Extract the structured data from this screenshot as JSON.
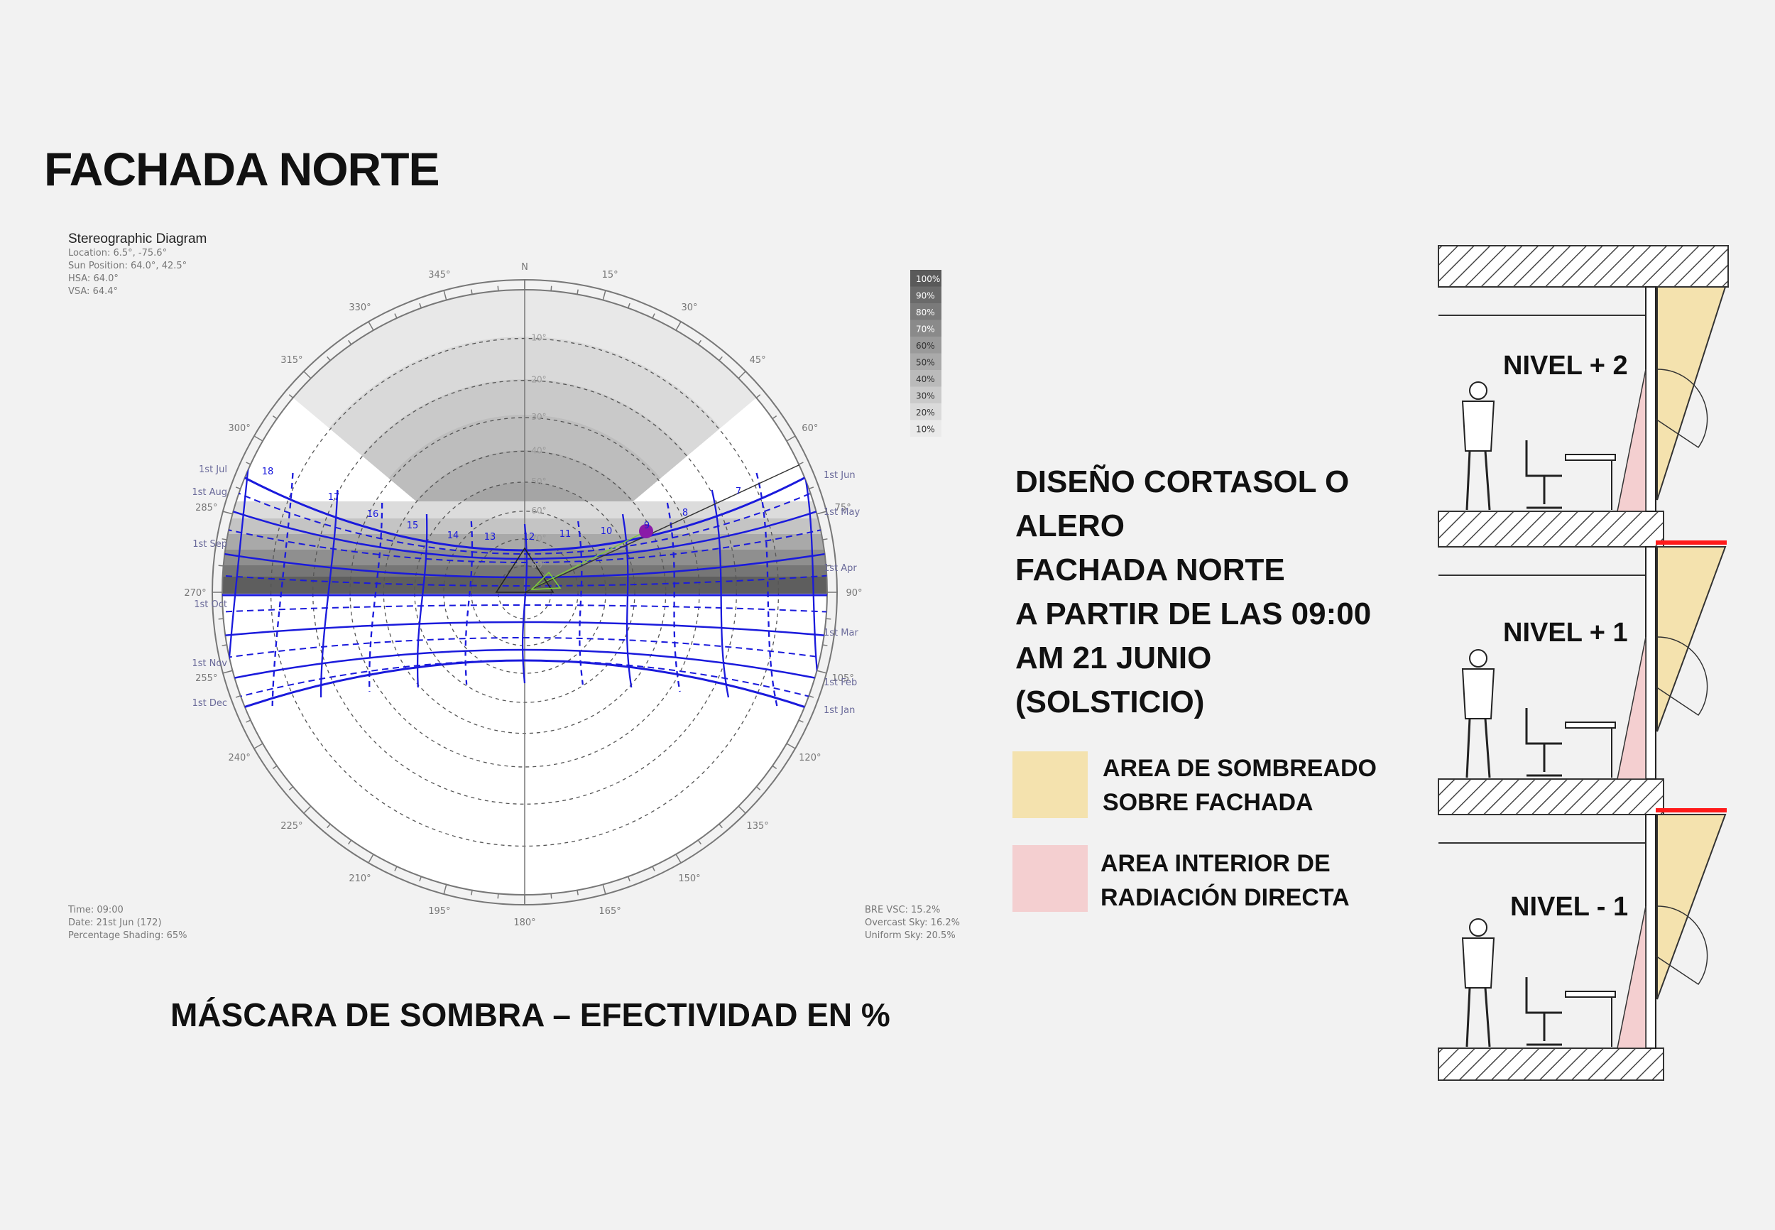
{
  "page_title": "FACHADA NORTE",
  "diagram": {
    "title": "Stereographic Diagram",
    "info_top": [
      "Location: 6.5°, -75.6°",
      "Sun Position: 64.0°, 42.5°",
      "HSA: 64.0°",
      "VSA: 64.4°"
    ],
    "info_bottom_left": [
      "Time: 09:00",
      "Date: 21st Jun (172)",
      "Percentage Shading: 65%"
    ],
    "info_bottom_right": [
      "BRE VSC: 15.2%",
      "Overcast Sky: 16.2%",
      "Uniform Sky: 20.5%"
    ],
    "north_label": "N",
    "azimuth_labels": [
      "345°",
      "15°",
      "30°",
      "45°",
      "60°",
      "75°",
      "90°",
      "105°",
      "120°",
      "135°",
      "150°",
      "165°",
      "180°",
      "195°",
      "210°",
      "225°",
      "240°",
      "255°",
      "270°",
      "285°",
      "300°",
      "315°",
      "330°"
    ],
    "altitude_labels": [
      "10°",
      "20°",
      "30°",
      "40°",
      "50°",
      "60°",
      "70°",
      "80°"
    ],
    "hour_labels": [
      "18",
      "17",
      "16",
      "15",
      "14",
      "13",
      "12",
      "11",
      "10",
      "9",
      "8",
      "7"
    ],
    "date_labels_left": [
      "1st Jul",
      "1st Aug",
      "1st Sep",
      "1st Oct",
      "1st Nov",
      "1st Dec"
    ],
    "date_labels_right": [
      "1st Jun",
      "1st May",
      "1st Apr",
      "1st Mar",
      "1st Feb",
      "1st Jan"
    ],
    "shading_scale": [
      "100%",
      "90%",
      "80%",
      "70%",
      "60%",
      "50%",
      "40%",
      "30%",
      "20%",
      "10%"
    ],
    "colors": {
      "sunpath": "#1a1adc",
      "current_sun": "#8a1aa8",
      "sun_ray": "#7fcc3a"
    }
  },
  "bottom_caption": "MÁSCARA DE SOMBRA – EFECTIVIDAD EN %",
  "design_text": [
    "DISEÑO CORTASOL O",
    "ALERO",
    "FACHADA NORTE",
    "A PARTIR DE LAS 09:00",
    "AM 21 JUNIO",
    "(SOLSTICIO)"
  ],
  "legend": [
    {
      "lines": [
        "AREA DE SOMBREADO",
        "SOBRE FACHADA"
      ],
      "color": "#f4e2ae"
    },
    {
      "lines": [
        "AREA INTERIOR DE",
        "RADIACIÓN DIRECTA"
      ],
      "color": "#f4cfd0"
    }
  ],
  "section": {
    "levels": [
      "NIVEL + 2",
      "NIVEL + 1",
      "NIVEL - 1"
    ],
    "colors": {
      "shade": "#f4e2ae",
      "radiation": "#f4cfd0",
      "overhang": "#ff1a1a"
    }
  }
}
